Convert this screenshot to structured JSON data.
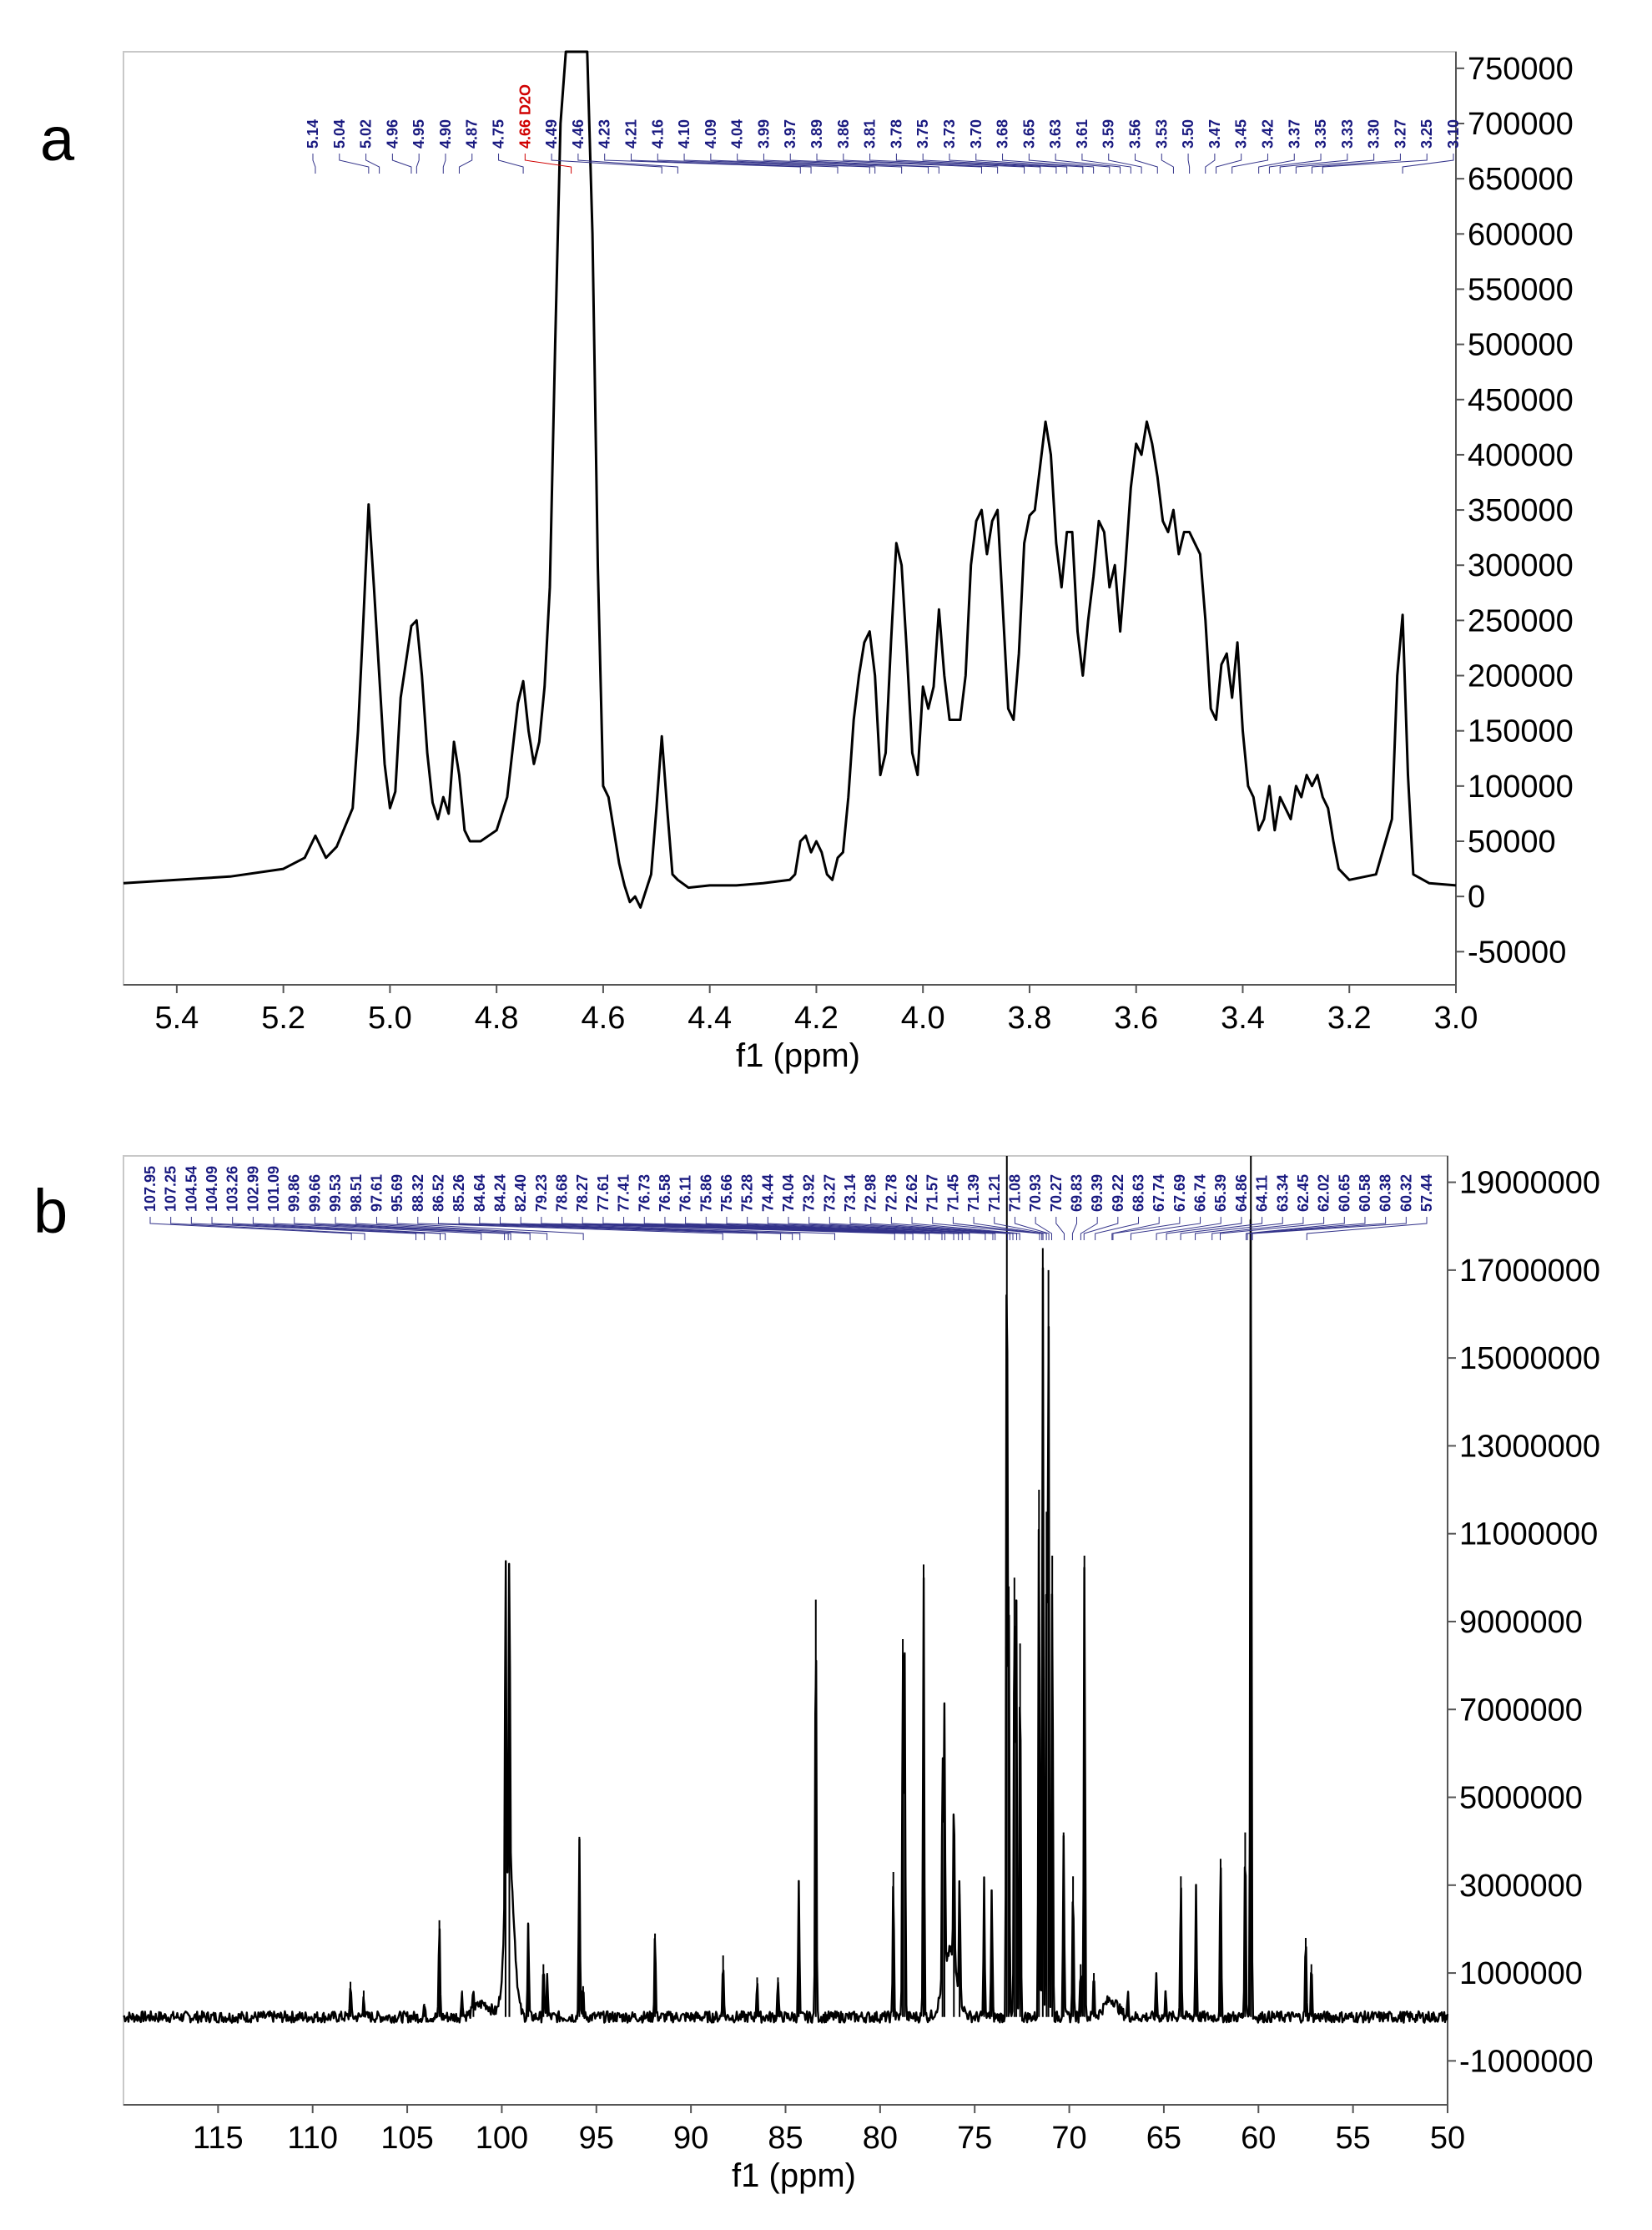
{
  "figure": {
    "panel_letters": [
      "a",
      "b"
    ]
  },
  "chart_data": [
    {
      "type": "line",
      "title": "",
      "xlabel": "f1 (ppm)",
      "ylabel": "",
      "x_reversed": true,
      "xlim": [
        5.5,
        3.0
      ],
      "ylim": [
        -80000,
        765000
      ],
      "x_ticks": [
        "5.4",
        "5.2",
        "5.0",
        "4.8",
        "4.6",
        "4.4",
        "4.2",
        "4.0",
        "3.8",
        "3.6",
        "3.4",
        "3.2",
        "3.0"
      ],
      "y_ticks": [
        "750000",
        "700000",
        "650000",
        "600000",
        "550000",
        "500000",
        "450000",
        "400000",
        "350000",
        "300000",
        "250000",
        "200000",
        "150000",
        "100000",
        "50000",
        "0",
        "-50000"
      ],
      "peak_labels": [
        "5.14",
        "5.04",
        "5.02",
        "4.96",
        "4.95",
        "4.90",
        "4.87",
        "4.75",
        "4.66 D2O",
        "4.49",
        "4.46",
        "4.23",
        "4.21",
        "4.16",
        "4.10",
        "4.09",
        "4.04",
        "3.99",
        "3.97",
        "3.89",
        "3.86",
        "3.81",
        "3.78",
        "3.75",
        "3.73",
        "3.70",
        "3.68",
        "3.65",
        "3.63",
        "3.61",
        "3.59",
        "3.56",
        "3.53",
        "3.50",
        "3.47",
        "3.45",
        "3.42",
        "3.37",
        "3.35",
        "3.33",
        "3.30",
        "3.27",
        "3.25",
        "3.10"
      ],
      "solvent_label": "4.66 D2O",
      "series": [
        {
          "x": [
            5.5,
            5.4,
            5.3,
            5.2,
            5.16,
            5.14,
            5.12,
            5.1,
            5.07,
            5.06,
            5.05,
            5.04,
            5.03,
            5.02,
            5.01,
            5.0,
            4.99,
            4.98,
            4.96,
            4.95,
            4.94,
            4.93,
            4.92,
            4.91,
            4.9,
            4.89,
            4.88,
            4.87,
            4.86,
            4.85,
            4.83,
            4.8,
            4.78,
            4.76,
            4.75,
            4.74,
            4.73,
            4.72,
            4.71,
            4.7,
            4.69,
            4.68,
            4.67,
            4.66,
            4.65,
            4.64,
            4.63,
            4.62,
            4.61,
            4.6,
            4.59,
            4.58,
            4.57,
            4.56,
            4.55,
            4.54,
            4.53,
            4.52,
            4.51,
            4.5,
            4.49,
            4.48,
            4.47,
            4.46,
            4.44,
            4.4,
            4.35,
            4.3,
            4.25,
            4.24,
            4.23,
            4.22,
            4.21,
            4.2,
            4.19,
            4.18,
            4.17,
            4.16,
            4.15,
            4.14,
            4.13,
            4.12,
            4.11,
            4.1,
            4.09,
            4.08,
            4.07,
            4.06,
            4.05,
            4.04,
            4.03,
            4.02,
            4.01,
            4.0,
            3.99,
            3.98,
            3.97,
            3.96,
            3.95,
            3.94,
            3.93,
            3.92,
            3.91,
            3.9,
            3.89,
            3.88,
            3.87,
            3.86,
            3.85,
            3.84,
            3.83,
            3.82,
            3.81,
            3.8,
            3.79,
            3.78,
            3.77,
            3.76,
            3.75,
            3.74,
            3.73,
            3.72,
            3.71,
            3.7,
            3.69,
            3.68,
            3.67,
            3.66,
            3.65,
            3.64,
            3.63,
            3.62,
            3.61,
            3.6,
            3.59,
            3.58,
            3.57,
            3.56,
            3.55,
            3.54,
            3.53,
            3.52,
            3.51,
            3.5,
            3.49,
            3.48,
            3.47,
            3.46,
            3.45,
            3.44,
            3.43,
            3.42,
            3.41,
            3.4,
            3.39,
            3.38,
            3.37,
            3.36,
            3.35,
            3.34,
            3.33,
            3.32,
            3.31,
            3.3,
            3.29,
            3.28,
            3.27,
            3.26,
            3.25,
            3.24,
            3.23,
            3.22,
            3.2,
            3.15,
            3.12,
            3.11,
            3.1,
            3.09,
            3.08,
            3.05,
            3.0
          ],
          "y": [
            12000,
            15000,
            18000,
            25000,
            35000,
            55000,
            35000,
            45000,
            80000,
            150000,
            250000,
            355000,
            280000,
            200000,
            120000,
            80000,
            95000,
            180000,
            245000,
            250000,
            200000,
            130000,
            85000,
            70000,
            90000,
            75000,
            140000,
            110000,
            60000,
            50000,
            50000,
            60000,
            90000,
            175000,
            195000,
            150000,
            120000,
            140000,
            190000,
            280000,
            500000,
            700000,
            765000,
            765000,
            765000,
            765000,
            765000,
            600000,
            300000,
            100000,
            90000,
            60000,
            30000,
            10000,
            -5000,
            0,
            -10000,
            5000,
            20000,
            80000,
            145000,
            80000,
            20000,
            15000,
            8000,
            10000,
            10000,
            12000,
            15000,
            20000,
            50000,
            55000,
            40000,
            50000,
            40000,
            20000,
            15000,
            35000,
            40000,
            90000,
            160000,
            200000,
            230000,
            240000,
            200000,
            110000,
            130000,
            230000,
            320000,
            300000,
            220000,
            130000,
            110000,
            190000,
            170000,
            190000,
            260000,
            200000,
            160000,
            160000,
            160000,
            200000,
            300000,
            340000,
            350000,
            310000,
            340000,
            350000,
            260000,
            170000,
            160000,
            220000,
            320000,
            345000,
            350000,
            390000,
            430000,
            400000,
            320000,
            280000,
            330000,
            330000,
            240000,
            200000,
            250000,
            290000,
            340000,
            330000,
            280000,
            300000,
            240000,
            300000,
            370000,
            410000,
            400000,
            430000,
            410000,
            380000,
            340000,
            330000,
            350000,
            310000,
            330000,
            330000,
            320000,
            310000,
            250000,
            170000,
            160000,
            210000,
            220000,
            180000,
            230000,
            150000,
            100000,
            90000,
            60000,
            70000,
            100000,
            60000,
            90000,
            80000,
            70000,
            100000,
            90000,
            110000,
            100000,
            110000,
            90000,
            80000,
            50000,
            25000,
            15000,
            20000,
            70000,
            200000,
            255000,
            110000,
            20000,
            12000,
            10000
          ]
        }
      ]
    },
    {
      "type": "line",
      "title": "",
      "xlabel": "f1 (ppm)",
      "ylabel": "",
      "x_reversed": true,
      "xlim": [
        120,
        50
      ],
      "ylim": [
        -2000000,
        19600000
      ],
      "x_ticks": [
        "115",
        "110",
        "105",
        "100",
        "95",
        "90",
        "85",
        "80",
        "75",
        "70",
        "65",
        "60",
        "55",
        "50"
      ],
      "y_ticks": [
        "19000000",
        "17000000",
        "15000000",
        "13000000",
        "11000000",
        "9000000",
        "7000000",
        "5000000",
        "3000000",
        "1000000",
        "-1000000"
      ],
      "peak_labels": [
        "107.95",
        "107.25",
        "104.54",
        "104.09",
        "103.26",
        "102.99",
        "101.09",
        "99.86",
        "99.66",
        "99.53",
        "98.51",
        "97.61",
        "95.69",
        "88.32",
        "86.52",
        "85.26",
        "84.64",
        "84.24",
        "82.40",
        "79.23",
        "78.68",
        "78.27",
        "77.61",
        "77.41",
        "76.73",
        "76.58",
        "76.11",
        "75.86",
        "75.66",
        "75.28",
        "74.44",
        "74.04",
        "73.92",
        "73.27",
        "73.14",
        "72.98",
        "72.78",
        "72.62",
        "71.57",
        "71.45",
        "71.39",
        "71.21",
        "71.08",
        "70.93",
        "70.27",
        "69.83",
        "69.39",
        "69.22",
        "68.63",
        "67.74",
        "67.69",
        "66.74",
        "65.39",
        "64.86",
        "64.11",
        "63.34",
        "62.45",
        "62.02",
        "60.65",
        "60.58",
        "60.38",
        "60.32",
        "57.44"
      ],
      "series": [
        {
          "baseline": 0,
          "broad_humps": [
            [
              101.0,
              300000,
              0.6
            ],
            [
              99.6,
              3500000,
              0.35
            ],
            [
              76.3,
              1500000,
              0.5
            ],
            [
              67.8,
              400000,
              0.5
            ]
          ],
          "peaks_x": [
            108.0,
            107.3,
            104.1,
            103.3,
            102.1,
            101.5,
            99.8,
            99.6,
            98.6,
            97.8,
            97.6,
            95.9,
            95.7,
            91.9,
            88.3,
            86.5,
            85.4,
            84.3,
            83.4,
            79.3,
            78.8,
            78.7,
            77.7,
            76.7,
            76.6,
            76.1,
            75.8,
            74.5,
            74.1,
            73.3,
            73.2,
            72.9,
            72.8,
            72.6,
            71.6,
            71.4,
            71.2,
            71.1,
            70.9,
            70.3,
            69.8,
            69.4,
            69.2,
            68.7,
            66.9,
            65.4,
            64.9,
            64.1,
            63.3,
            62.0,
            60.7,
            60.4,
            57.5,
            57.2
          ],
          "peaks_y": [
            800000,
            600000,
            300000,
            2200000,
            600000,
            500000,
            8500000,
            7500000,
            2100000,
            1200000,
            1000000,
            4100000,
            700000,
            1900000,
            1400000,
            900000,
            900000,
            3100000,
            9500000,
            3300000,
            8600000,
            8300000,
            10300000,
            5300000,
            6000000,
            3900000,
            2800000,
            3100000,
            2900000,
            19600000,
            9800000,
            10000000,
            9500000,
            8500000,
            12000000,
            17500000,
            11500000,
            17000000,
            10500000,
            4200000,
            3200000,
            1200000,
            10500000,
            1000000,
            500000,
            1000000,
            600000,
            3200000,
            3000000,
            3600000,
            4200000,
            19600000,
            1800000,
            1200000
          ]
        }
      ]
    }
  ]
}
